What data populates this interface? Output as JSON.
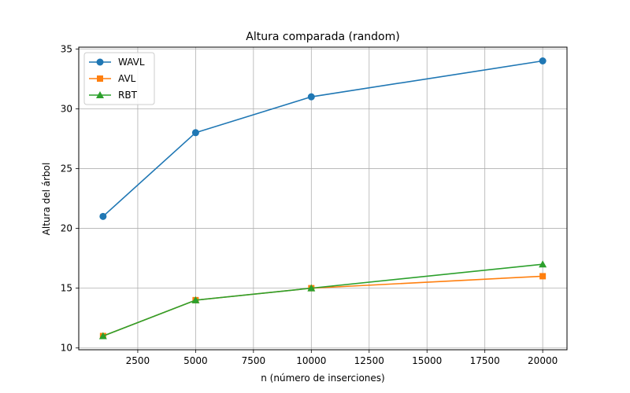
{
  "chart_data": {
    "type": "line",
    "title": "Altura comparada (random)",
    "xlabel": "n (número de inserciones)",
    "ylabel": "Altura del árbol",
    "x": [
      1000,
      5000,
      10000,
      20000
    ],
    "xlim": [
      -50,
      21050
    ],
    "ylim": [
      9.85,
      35.15
    ],
    "xticks": [
      2500,
      5000,
      7500,
      10000,
      12500,
      15000,
      17500,
      20000
    ],
    "xtick_labels": [
      "2500",
      "5000",
      "7500",
      "10000",
      "12500",
      "15000",
      "17500",
      "20000"
    ],
    "yticks": [
      10,
      15,
      20,
      25,
      30,
      35
    ],
    "ytick_labels": [
      "10",
      "15",
      "20",
      "25",
      "30",
      "35"
    ],
    "grid": true,
    "legend_position": "top-left",
    "series": [
      {
        "name": "WAVL",
        "values": [
          21,
          28,
          31,
          34
        ],
        "color": "#1f77b4",
        "marker": "circle"
      },
      {
        "name": "AVL",
        "values": [
          11,
          14,
          15,
          16
        ],
        "color": "#ff7f0e",
        "marker": "square"
      },
      {
        "name": "RBT",
        "values": [
          11,
          14,
          15,
          17
        ],
        "color": "#2ca02c",
        "marker": "triangle"
      }
    ]
  }
}
